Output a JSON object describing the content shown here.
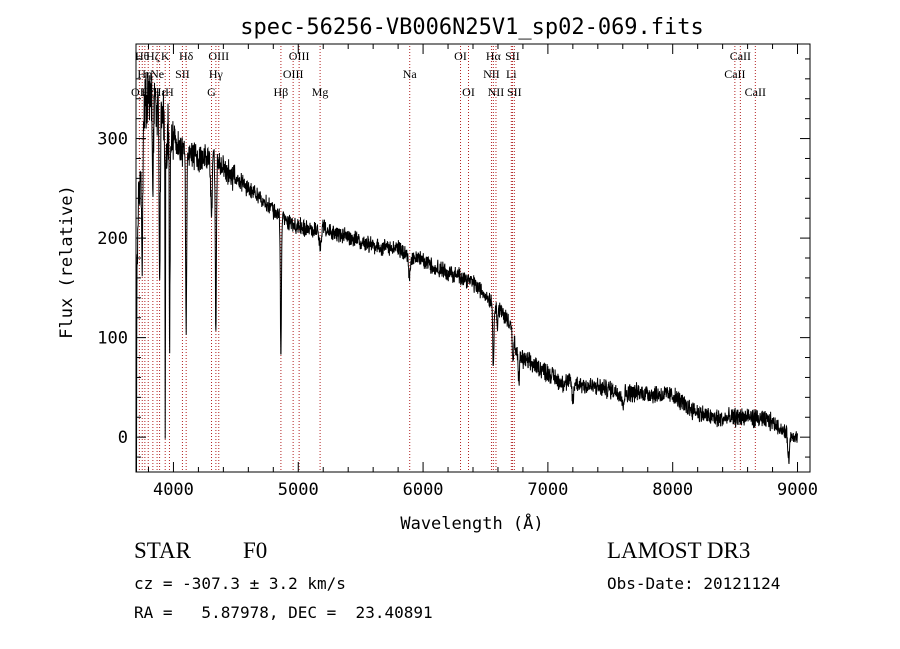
{
  "chart_data": {
    "type": "line",
    "title": "spec-56256-VB006N25V1_sp02-069.fits",
    "xlabel": "Wavelength (Å)",
    "ylabel": "Flux (relative)",
    "xlim": [
      3700,
      9100
    ],
    "ylim": [
      -35,
      395
    ],
    "xticks": [
      {
        "value": 4000,
        "label": "4000"
      },
      {
        "value": 5000,
        "label": "5000"
      },
      {
        "value": 6000,
        "label": "6000"
      },
      {
        "value": 7000,
        "label": "7000"
      },
      {
        "value": 8000,
        "label": "8000"
      },
      {
        "value": 9000,
        "label": "9000"
      }
    ],
    "yticks": [
      {
        "value": 0,
        "label": "0"
      },
      {
        "value": 100,
        "label": "100"
      },
      {
        "value": 200,
        "label": "200"
      },
      {
        "value": 300,
        "label": "300"
      }
    ],
    "spectrum_anchors": [
      [
        3700,
        5
      ],
      [
        3710,
        180
      ],
      [
        3730,
        260
      ],
      [
        3760,
        320
      ],
      [
        3800,
        345
      ],
      [
        3850,
        335
      ],
      [
        3900,
        320
      ],
      [
        3950,
        300
      ],
      [
        4000,
        300
      ],
      [
        4050,
        290
      ],
      [
        4100,
        285
      ],
      [
        4150,
        285
      ],
      [
        4200,
        280
      ],
      [
        4300,
        280
      ],
      [
        4400,
        270
      ],
      [
        4500,
        260
      ],
      [
        4600,
        250
      ],
      [
        4700,
        240
      ],
      [
        4800,
        228
      ],
      [
        4900,
        218
      ],
      [
        5000,
        212
      ],
      [
        5100,
        208
      ],
      [
        5200,
        212
      ],
      [
        5300,
        205
      ],
      [
        5400,
        200
      ],
      [
        5500,
        197
      ],
      [
        5600,
        192
      ],
      [
        5700,
        190
      ],
      [
        5800,
        190
      ],
      [
        5900,
        180
      ],
      [
        6000,
        178
      ],
      [
        6100,
        170
      ],
      [
        6200,
        165
      ],
      [
        6300,
        162
      ],
      [
        6400,
        155
      ],
      [
        6500,
        143
      ],
      [
        6600,
        130
      ],
      [
        6700,
        115
      ],
      [
        6750,
        82
      ],
      [
        6800,
        78
      ],
      [
        6900,
        72
      ],
      [
        7000,
        65
      ],
      [
        7100,
        55
      ],
      [
        7200,
        55
      ],
      [
        7300,
        52
      ],
      [
        7400,
        50
      ],
      [
        7500,
        48
      ],
      [
        7600,
        44
      ],
      [
        7700,
        45
      ],
      [
        7800,
        44
      ],
      [
        7900,
        43
      ],
      [
        8000,
        42
      ],
      [
        8100,
        32
      ],
      [
        8200,
        25
      ],
      [
        8300,
        20
      ],
      [
        8400,
        18
      ],
      [
        8500,
        20
      ],
      [
        8600,
        20
      ],
      [
        8700,
        18
      ],
      [
        8800,
        15
      ],
      [
        8900,
        5
      ],
      [
        9000,
        0
      ]
    ],
    "spectrum_features": [
      {
        "x": 3702,
        "depth": 160,
        "width": 3
      },
      {
        "x": 3750,
        "depth": 120,
        "width": 6
      },
      {
        "x": 3835,
        "depth": 110,
        "width": 6
      },
      {
        "x": 3889,
        "depth": 180,
        "width": 6
      },
      {
        "x": 3934,
        "depth": 290,
        "width": 3
      },
      {
        "x": 3970,
        "depth": 200,
        "width": 5
      },
      {
        "x": 4102,
        "depth": 180,
        "width": 6
      },
      {
        "x": 4305,
        "depth": 60,
        "width": 8
      },
      {
        "x": 4340,
        "depth": 170,
        "width": 6
      },
      {
        "x": 4861,
        "depth": 140,
        "width": 6
      },
      {
        "x": 5175,
        "depth": 20,
        "width": 15
      },
      {
        "x": 5893,
        "depth": 20,
        "width": 12
      },
      {
        "x": 6563,
        "depth": 70,
        "width": 6
      },
      {
        "x": 6595,
        "depth": 20,
        "width": 6
      },
      {
        "x": 6720,
        "depth": 30,
        "width": 6
      },
      {
        "x": 6767,
        "depth": 25,
        "width": 6
      },
      {
        "x": 7200,
        "depth": 18,
        "width": 10
      },
      {
        "x": 7600,
        "depth": 12,
        "width": 10
      },
      {
        "x": 8930,
        "depth": 25,
        "width": 10
      }
    ],
    "spectral_lines": [
      {
        "x": 3727,
        "label": "OII",
        "row": 2
      },
      {
        "x": 3750,
        "label": "Hθ",
        "row": 0
      },
      {
        "x": 3771,
        "label": "Hη",
        "row": 1
      },
      {
        "x": 3798,
        "label": "Hζ",
        "row": 2
      },
      {
        "x": 3835,
        "label": "Hζ",
        "row": 0
      },
      {
        "x": 3869,
        "label": "Ne",
        "row": 1
      },
      {
        "x": 3889,
        "label": "Hε",
        "row": 2
      },
      {
        "x": 3934,
        "label": "K",
        "row": 0
      },
      {
        "x": 3968,
        "label": "H",
        "row": 2
      },
      {
        "x": 4072,
        "label": "SII",
        "row": 1
      },
      {
        "x": 4102,
        "label": "Hδ",
        "row": 0
      },
      {
        "x": 4305,
        "label": "G",
        "row": 2
      },
      {
        "x": 4340,
        "label": "Hγ",
        "row": 1
      },
      {
        "x": 4363,
        "label": "OIII",
        "row": 0
      },
      {
        "x": 4861,
        "label": "Hβ",
        "row": 2
      },
      {
        "x": 4959,
        "label": "OIII",
        "row": 1
      },
      {
        "x": 5007,
        "label": "OIII",
        "row": 0
      },
      {
        "x": 5175,
        "label": "Mg",
        "row": 2
      },
      {
        "x": 5893,
        "label": "Na",
        "row": 1
      },
      {
        "x": 6300,
        "label": "OI",
        "row": 0
      },
      {
        "x": 6364,
        "label": "OI",
        "row": 2
      },
      {
        "x": 6548,
        "label": "NII",
        "row": 1
      },
      {
        "x": 6563,
        "label": "Hα",
        "row": 0
      },
      {
        "x": 6584,
        "label": "NII",
        "row": 2
      },
      {
        "x": 6707,
        "label": "Li",
        "row": 1
      },
      {
        "x": 6716,
        "label": "SII",
        "row": 0
      },
      {
        "x": 6731,
        "label": "SII",
        "row": 2
      },
      {
        "x": 8498,
        "label": "CaII",
        "row": 1
      },
      {
        "x": 8542,
        "label": "CaII",
        "row": 0
      },
      {
        "x": 8662,
        "label": "CaII",
        "row": 2
      }
    ],
    "line_color": "#000000",
    "marker_color": "#b22222"
  },
  "info": {
    "object_class": "STAR",
    "subclass": "F0",
    "survey": "LAMOST DR3",
    "cz": "cz = -307.3 ± 3.2 km/s",
    "obs_date": "Obs-Date: 20121124",
    "coords": "RA =   5.87978, DEC =  23.40891"
  }
}
